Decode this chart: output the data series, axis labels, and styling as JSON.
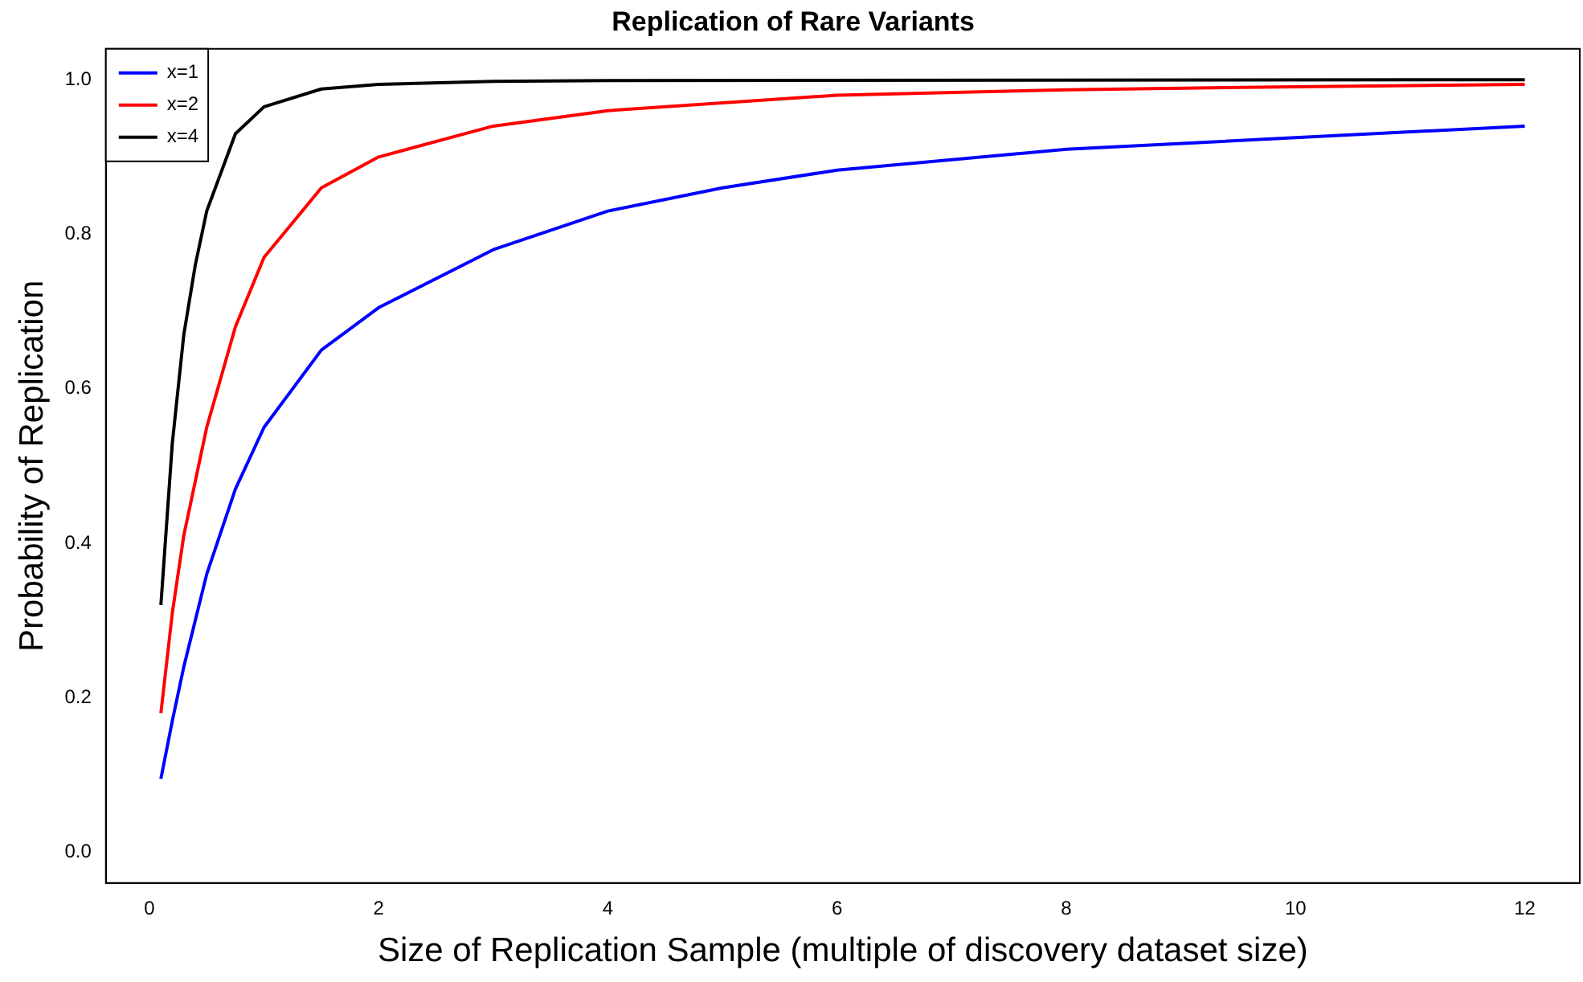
{
  "chart_data": {
    "type": "line",
    "title": "Replication of Rare Variants",
    "xlabel": "Size of Replication Sample (multiple of discovery dataset size)",
    "ylabel": "Probability of Replication",
    "series": [
      {
        "name": "x=1",
        "color": "#0000ff",
        "x": [
          0.1,
          0.2,
          0.3,
          0.5,
          0.75,
          1,
          1.5,
          2,
          3,
          4,
          5,
          6,
          8,
          10,
          12
        ],
        "values": [
          0.095,
          0.17,
          0.24,
          0.36,
          0.47,
          0.55,
          0.65,
          0.705,
          0.78,
          0.83,
          0.86,
          0.883,
          0.91,
          0.925,
          0.94
        ]
      },
      {
        "name": "x=2",
        "color": "#ff0000",
        "x": [
          0.1,
          0.2,
          0.3,
          0.5,
          0.75,
          1,
          1.5,
          2,
          3,
          4,
          6,
          8,
          10,
          12
        ],
        "values": [
          0.18,
          0.31,
          0.41,
          0.55,
          0.68,
          0.77,
          0.86,
          0.9,
          0.94,
          0.96,
          0.98,
          0.987,
          0.991,
          0.994
        ]
      },
      {
        "name": "x=4",
        "color": "#000000",
        "x": [
          0.1,
          0.2,
          0.3,
          0.4,
          0.5,
          0.75,
          1,
          1.5,
          2,
          3,
          4,
          12
        ],
        "values": [
          0.32,
          0.53,
          0.67,
          0.76,
          0.83,
          0.93,
          0.965,
          0.988,
          0.994,
          0.998,
          0.999,
          1.0
        ]
      }
    ],
    "xlim": [
      -0.38,
      12.48
    ],
    "xticks": [
      0,
      2,
      4,
      6,
      8,
      10,
      12
    ],
    "ylim": [
      -0.04,
      1.04
    ],
    "yticks": [
      {
        "value": 0,
        "label": "0.0"
      },
      {
        "value": 0.2,
        "label": "0.2"
      },
      {
        "value": 0.4,
        "label": "0.4"
      },
      {
        "value": 0.6,
        "label": "0.6"
      },
      {
        "value": 0.8,
        "label": "0.8"
      },
      {
        "value": 1,
        "label": "1.0"
      }
    ],
    "grid": false,
    "legend": "top left",
    "marker": "none",
    "line_style": "solid"
  }
}
